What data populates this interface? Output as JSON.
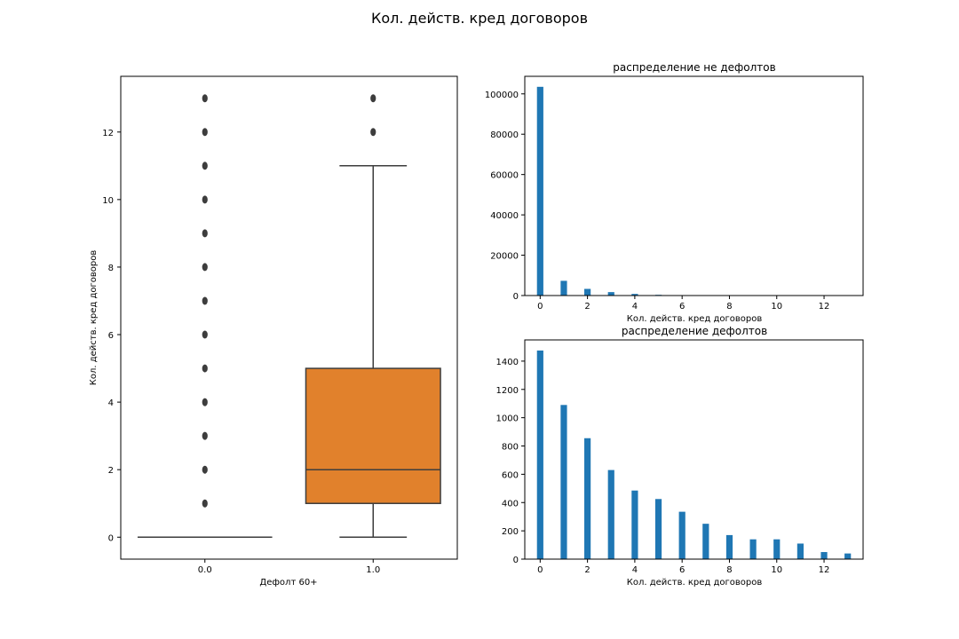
{
  "suptitle": "Кол. действ. кред договоров",
  "chart_data": [
    {
      "type": "box",
      "xlabel": "Дефолт 60+",
      "ylabel": "Кол. действ. кред договоров",
      "categories": [
        "0.0",
        "1.0"
      ],
      "ylim": [
        -0.65,
        13.65
      ],
      "yticks": [
        0,
        2,
        4,
        6,
        8,
        10,
        12
      ],
      "boxes": [
        {
          "category": "0.0",
          "color": "#1f77b4",
          "min": 0,
          "q1": 0,
          "median": 0,
          "q3": 0,
          "max": 0,
          "outliers": [
            1,
            2,
            3,
            4,
            5,
            6,
            7,
            8,
            9,
            10,
            11,
            12,
            13
          ]
        },
        {
          "category": "1.0",
          "color": "#e1812c",
          "min": 0,
          "q1": 1,
          "median": 2,
          "q3": 5,
          "max": 11,
          "outliers": [
            12,
            13
          ]
        }
      ]
    },
    {
      "type": "bar",
      "title": "распределение не дефолтов",
      "xlabel": "Кол. действ. кред договоров",
      "ylabel": "",
      "xlim": [
        -0.65,
        13.65
      ],
      "ylim": [
        0,
        108700
      ],
      "xticks": [
        0,
        2,
        4,
        6,
        8,
        10,
        12
      ],
      "yticks": [
        0,
        20000,
        40000,
        60000,
        80000,
        100000
      ],
      "color": "#1f77b4",
      "x": [
        0,
        1,
        2,
        3,
        4,
        5,
        6,
        7,
        8,
        9,
        10,
        11,
        12,
        13
      ],
      "values": [
        103500,
        7300,
        3300,
        1700,
        800,
        350,
        150,
        60,
        30,
        15,
        8,
        4,
        2,
        1
      ]
    },
    {
      "type": "bar",
      "title": "распределение дефолтов",
      "xlabel": "Кол. действ. кред договоров",
      "ylabel": "",
      "xlim": [
        -0.65,
        13.65
      ],
      "ylim": [
        0,
        1550
      ],
      "xticks": [
        0,
        2,
        4,
        6,
        8,
        10,
        12
      ],
      "yticks": [
        0,
        200,
        400,
        600,
        800,
        1000,
        1200,
        1400
      ],
      "color": "#1f77b4",
      "x": [
        0,
        1,
        2,
        3,
        4,
        5,
        6,
        7,
        8,
        9,
        10,
        11,
        12,
        13
      ],
      "values": [
        1475,
        1090,
        855,
        630,
        485,
        425,
        335,
        250,
        170,
        140,
        140,
        110,
        50,
        40
      ]
    }
  ]
}
